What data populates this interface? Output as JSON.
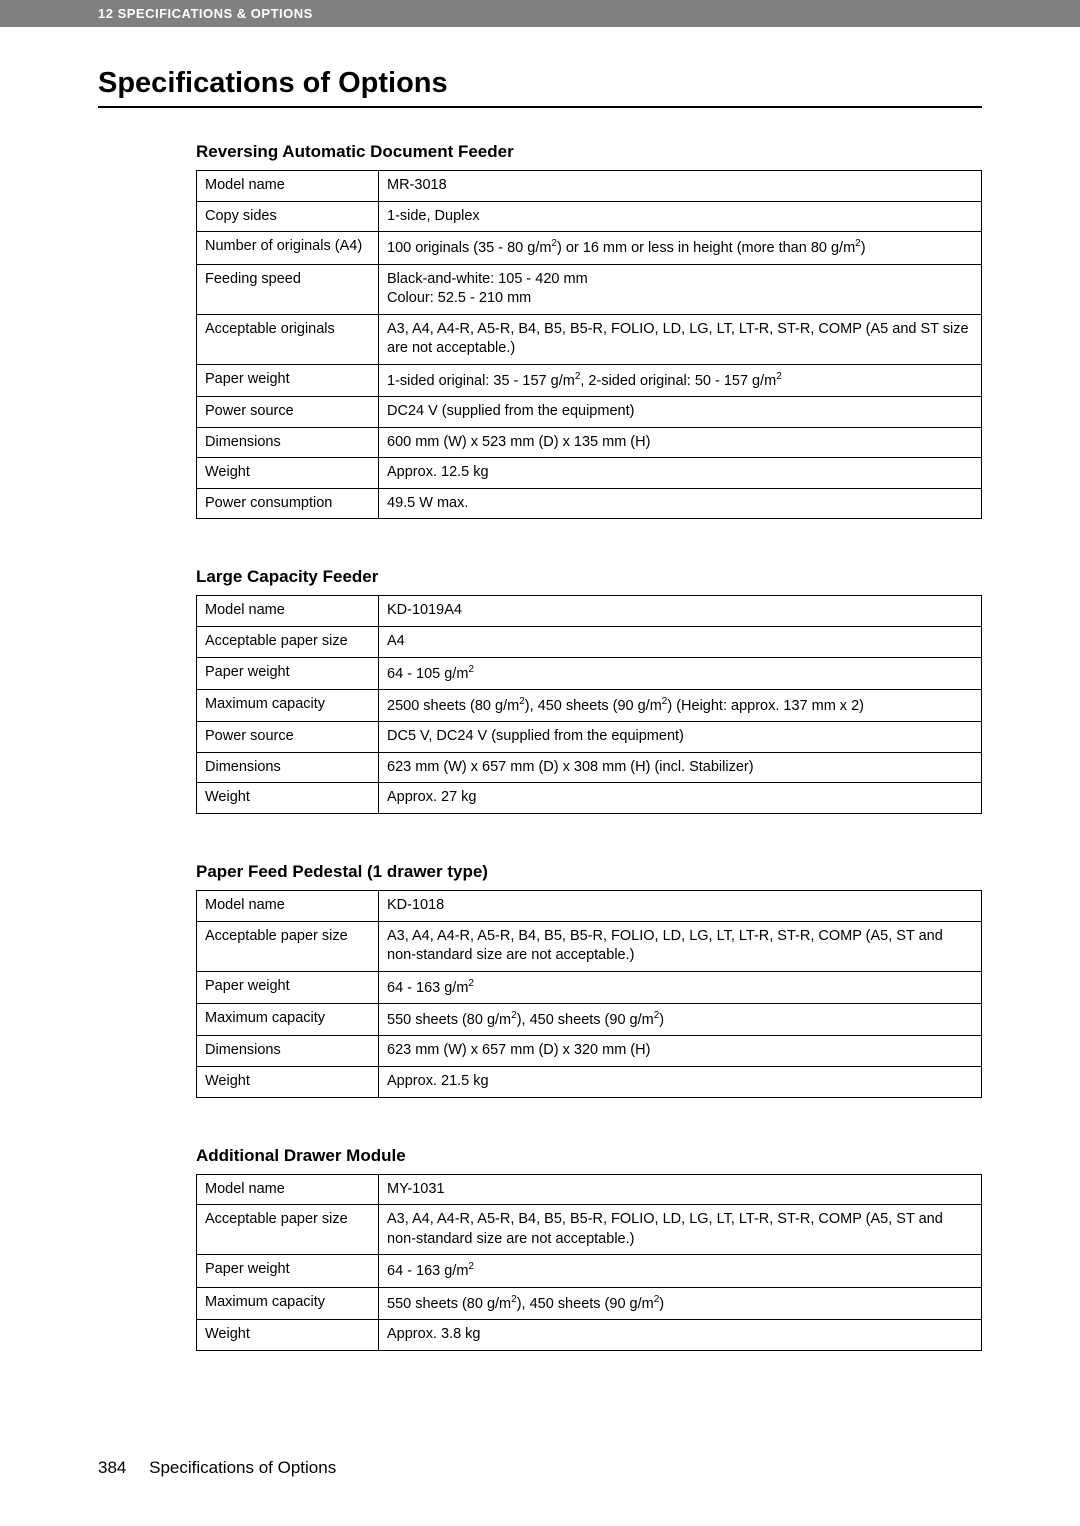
{
  "header": {
    "text": "12    SPECIFICATIONS & OPTIONS"
  },
  "main_title": "Specifications of Options",
  "sections": {
    "radf": {
      "title": "Reversing Automatic Document Feeder",
      "rows": {
        "model_name_l": "Model name",
        "model_name_v": "MR-3018",
        "copy_sides_l": "Copy sides",
        "copy_sides_v": "1-side, Duplex",
        "num_orig_l": "Number of originals (A4)",
        "num_orig_v": "100 originals (35 - 80 g/m²) or 16 mm or less in height (more than 80 g/m²)",
        "feed_speed_l": "Feeding speed",
        "feed_speed_v": "Black-and-white: 105 - 420 mm\nColour: 52.5 - 210 mm",
        "accept_orig_l": "Acceptable originals",
        "accept_orig_v": "A3, A4, A4-R, A5-R, B4, B5, B5-R, FOLIO, LD, LG, LT, LT-R, ST-R, COMP (A5 and ST size are not acceptable.)",
        "paper_weight_l": "Paper weight",
        "paper_weight_v": "1-sided original: 35 - 157 g/m², 2-sided original: 50 - 157 g/m²",
        "power_src_l": "Power source",
        "power_src_v": "DC24 V (supplied from the equipment)",
        "dimensions_l": "Dimensions",
        "dimensions_v": "600 mm (W) x 523 mm (D) x 135 mm (H)",
        "weight_l": "Weight",
        "weight_v": "Approx. 12.5 kg",
        "power_cons_l": "Power consumption",
        "power_cons_v": "49.5 W max."
      }
    },
    "lcf": {
      "title": "Large Capacity Feeder",
      "rows": {
        "model_name_l": "Model name",
        "model_name_v": "KD-1019A4",
        "accept_paper_l": "Acceptable paper size",
        "accept_paper_v": "A4",
        "paper_weight_l": "Paper weight",
        "paper_weight_v": "64 - 105 g/m²",
        "max_cap_l": "Maximum capacity",
        "max_cap_v": "2500 sheets (80 g/m²), 450 sheets (90 g/m²) (Height: approx. 137 mm x 2)",
        "power_src_l": "Power source",
        "power_src_v": "DC5 V, DC24 V (supplied from the equipment)",
        "dimensions_l": "Dimensions",
        "dimensions_v": "623 mm (W) x 657 mm (D) x 308 mm (H) (incl. Stabilizer)",
        "weight_l": "Weight",
        "weight_v": "Approx. 27 kg"
      }
    },
    "pfp": {
      "title": "Paper Feed Pedestal (1 drawer type)",
      "rows": {
        "model_name_l": "Model name",
        "model_name_v": "KD-1018",
        "accept_paper_l": "Acceptable paper size",
        "accept_paper_v": "A3, A4, A4-R, A5-R, B4, B5, B5-R, FOLIO, LD, LG, LT, LT-R, ST-R, COMP (A5, ST and non-standard size are not acceptable.)",
        "paper_weight_l": "Paper weight",
        "paper_weight_v": "64 - 163 g/m²",
        "max_cap_l": "Maximum capacity",
        "max_cap_v": "550 sheets (80 g/m²), 450 sheets (90 g/m²)",
        "dimensions_l": "Dimensions",
        "dimensions_v": "623 mm (W) x 657 mm (D) x 320 mm (H)",
        "weight_l": "Weight",
        "weight_v": "Approx. 21.5 kg"
      }
    },
    "adm": {
      "title": "Additional Drawer Module",
      "rows": {
        "model_name_l": "Model name",
        "model_name_v": "MY-1031",
        "accept_paper_l": "Acceptable paper size",
        "accept_paper_v": "A3, A4, A4-R, A5-R, B4, B5, B5-R, FOLIO, LD, LG, LT, LT-R, ST-R, COMP (A5, ST and non-standard size are not acceptable.)",
        "paper_weight_l": "Paper weight",
        "paper_weight_v": "64 - 163 g/m²",
        "max_cap_l": "Maximum capacity",
        "max_cap_v": "550 sheets (80 g/m²), 450 sheets (90 g/m²)",
        "weight_l": "Weight",
        "weight_v": "Approx. 3.8 kg"
      }
    }
  },
  "footer": {
    "page_num": "384",
    "title": "Specifications of Options"
  }
}
